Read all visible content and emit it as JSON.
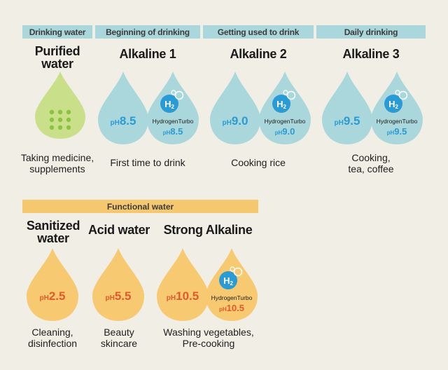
{
  "headers": {
    "drinking_water": "Drinking water",
    "beginning": "Beginning of drinking",
    "getting_used": "Getting used to drink",
    "daily": "Daily drinking",
    "functional": "Functional water"
  },
  "columns": {
    "purified": {
      "title_line1": "Purified",
      "title_line2": "water",
      "caption_line1": "Taking medicine,",
      "caption_line2": "supplements"
    },
    "alkaline1": {
      "title": "Alkaline 1",
      "ph_prefix": "pH",
      "ph": "8.5",
      "turbo_ph": "8.5",
      "caption": "First time to drink"
    },
    "alkaline2": {
      "title": "Alkaline 2",
      "ph_prefix": "pH",
      "ph": "9.0",
      "turbo_ph": "9.0",
      "caption": "Cooking rice"
    },
    "alkaline3": {
      "title": "Alkaline 3",
      "ph_prefix": "pH",
      "ph": "9.5",
      "turbo_ph": "9.5",
      "caption_line1": "Cooking,",
      "caption_line2": "tea, coffee"
    },
    "sanitized": {
      "title_line1": "Sanitized",
      "title_line2": "water",
      "ph_prefix": "pH",
      "ph": "2.5",
      "caption_line1": "Cleaning,",
      "caption_line2": "disinfection"
    },
    "acid": {
      "title": "Acid water",
      "ph_prefix": "pH",
      "ph": "5.5",
      "caption_line1": "Beauty",
      "caption_line2": "skincare"
    },
    "strong": {
      "title": "Strong Alkaline",
      "ph_prefix": "pH",
      "ph": "10.5",
      "turbo_ph": "10.5",
      "caption_line1": "Washing vegetables,",
      "caption_line2": "Pre-cooking"
    }
  },
  "turbo": {
    "h2_label": "H",
    "h2_sub": "2",
    "label": "HydrogenTurbo",
    "ph_prefix": "pH"
  },
  "colors": {
    "header_blue": "#a9d7db",
    "functional_yellow": "#f5c76e",
    "drop_green": "#c9df8a",
    "drop_blue": "#a9d7db",
    "drop_yellow": "#f7c970",
    "ph_blue": "#2a9bd4",
    "ph_red": "#e05a2b",
    "dots_green": "#8ac43f"
  }
}
